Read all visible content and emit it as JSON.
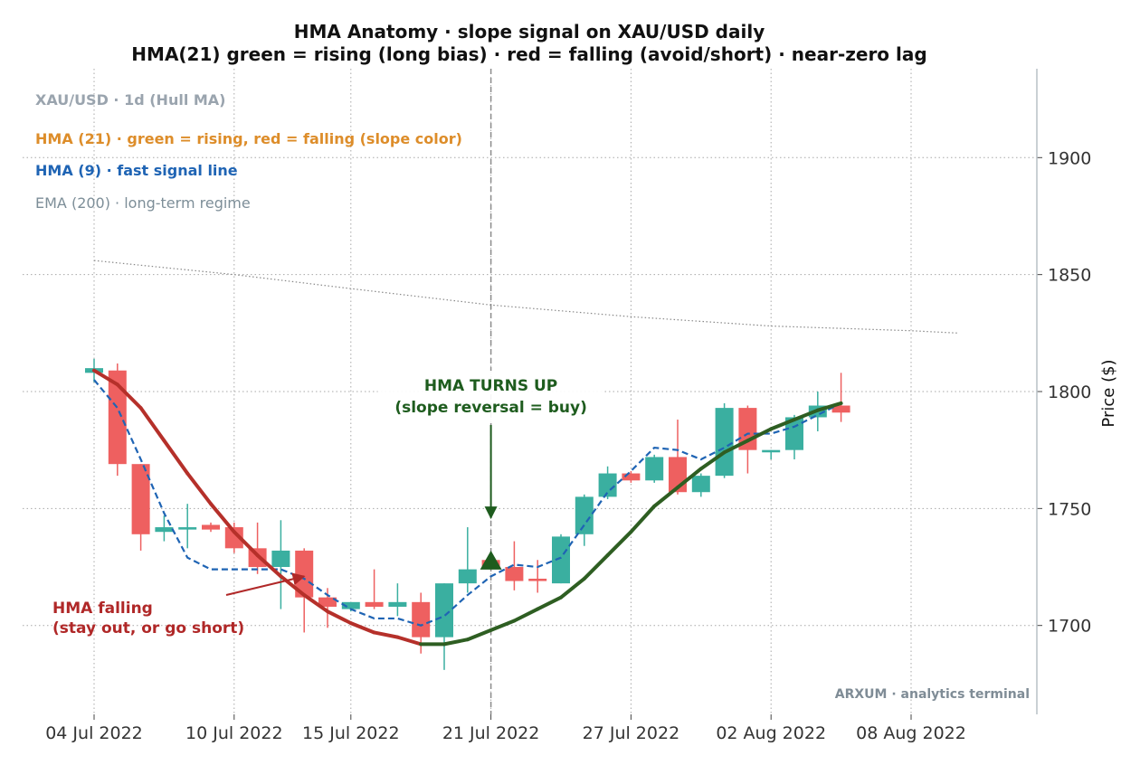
{
  "colors": {
    "bull": "#3aafa0",
    "bear": "#ee6060",
    "hma21_rising": "#2e5e22",
    "hma21_falling": "#b5302a",
    "hma9": "#1f64b4",
    "ema200": "#888888",
    "legend_main": "#9aa4ae",
    "legend_hma21": "#dd8d2a",
    "legend_hma9": "#1f64b4",
    "legend_ema": "#7d8e98",
    "annot_up": "#1e5c1e",
    "annot_down": "#b02828",
    "marker": "#1e5c1e"
  },
  "chart_data": {
    "type": "candlestick",
    "title": "HMA Anatomy · slope signal on XAU/USD daily",
    "subtitle": "HMA(21) green = rising (long bias) · red = falling (avoid/short) · near-zero lag",
    "ylabel": "Price ($)",
    "xlabel": "",
    "ylim": [
      1662,
      1938
    ],
    "y_ticks": [
      1700,
      1750,
      1800,
      1850,
      1900
    ],
    "y_axis_side": "right",
    "grid": true,
    "x_start": "2022-07-04",
    "x_end": "2022-08-13",
    "x_ticks": [
      "2022-07-04",
      "2022-07-10",
      "2022-07-15",
      "2022-07-21",
      "2022-07-27",
      "2022-08-02",
      "2022-08-08"
    ],
    "x_tick_labels": [
      "04 Jul 2022",
      "10 Jul 2022",
      "15 Jul 2022",
      "21 Jul 2022",
      "27 Jul 2022",
      "02 Aug 2022",
      "08 Aug 2022"
    ],
    "legend": {
      "placement": "top-left",
      "entries": [
        "XAU/USD · 1d (Hull MA)",
        "HMA (21) · green = rising, red = falling (slope color)",
        "HMA (9) · fast signal line",
        "EMA (200) · long-term regime"
      ]
    },
    "candles": [
      {
        "date": "2022-07-04",
        "open": 1808,
        "high": 1814,
        "low": 1804,
        "close": 1810
      },
      {
        "date": "2022-07-05",
        "open": 1809,
        "high": 1812,
        "low": 1764,
        "close": 1769
      },
      {
        "date": "2022-07-06",
        "open": 1769,
        "high": 1769,
        "low": 1732,
        "close": 1739
      },
      {
        "date": "2022-07-07",
        "open": 1740,
        "high": 1747,
        "low": 1736,
        "close": 1742
      },
      {
        "date": "2022-07-08",
        "open": 1741,
        "high": 1752,
        "low": 1733,
        "close": 1742
      },
      {
        "date": "2022-07-09",
        "open": 1743,
        "high": 1744,
        "low": 1740,
        "close": 1741
      },
      {
        "date": "2022-07-10",
        "open": 1742,
        "high": 1744,
        "low": 1731,
        "close": 1733
      },
      {
        "date": "2022-07-11",
        "open": 1733,
        "high": 1744,
        "low": 1722,
        "close": 1725
      },
      {
        "date": "2022-07-12",
        "open": 1725,
        "high": 1745,
        "low": 1707,
        "close": 1732
      },
      {
        "date": "2022-07-13",
        "open": 1732,
        "high": 1733,
        "low": 1697,
        "close": 1712
      },
      {
        "date": "2022-07-14",
        "open": 1712,
        "high": 1716,
        "low": 1699,
        "close": 1708
      },
      {
        "date": "2022-07-15",
        "open": 1707,
        "high": 1710,
        "low": 1706,
        "close": 1710
      },
      {
        "date": "2022-07-16",
        "open": 1710,
        "high": 1724,
        "low": 1707,
        "close": 1708
      },
      {
        "date": "2022-07-17",
        "open": 1708,
        "high": 1718,
        "low": 1704,
        "close": 1710
      },
      {
        "date": "2022-07-18",
        "open": 1710,
        "high": 1714,
        "low": 1688,
        "close": 1695
      },
      {
        "date": "2022-07-19",
        "open": 1695,
        "high": 1718,
        "low": 1681,
        "close": 1718
      },
      {
        "date": "2022-07-20",
        "open": 1718,
        "high": 1742,
        "low": 1714,
        "close": 1724
      },
      {
        "date": "2022-07-21",
        "open": 1728,
        "high": 1729,
        "low": 1725,
        "close": 1725
      },
      {
        "date": "2022-07-22",
        "open": 1725,
        "high": 1736,
        "low": 1715,
        "close": 1719
      },
      {
        "date": "2022-07-23",
        "open": 1720,
        "high": 1728,
        "low": 1714,
        "close": 1719
      },
      {
        "date": "2022-07-24",
        "open": 1718,
        "high": 1739,
        "low": 1718,
        "close": 1738
      },
      {
        "date": "2022-07-25",
        "open": 1739,
        "high": 1756,
        "low": 1734,
        "close": 1755
      },
      {
        "date": "2022-07-26",
        "open": 1755,
        "high": 1768,
        "low": 1754,
        "close": 1765
      },
      {
        "date": "2022-07-27",
        "open": 1765,
        "high": 1766,
        "low": 1761,
        "close": 1762
      },
      {
        "date": "2022-07-28",
        "open": 1762,
        "high": 1773,
        "low": 1761,
        "close": 1772
      },
      {
        "date": "2022-07-29",
        "open": 1772,
        "high": 1788,
        "low": 1756,
        "close": 1757
      },
      {
        "date": "2022-07-30",
        "open": 1757,
        "high": 1765,
        "low": 1755,
        "close": 1764
      },
      {
        "date": "2022-07-31",
        "open": 1764,
        "high": 1795,
        "low": 1763,
        "close": 1793
      },
      {
        "date": "2022-08-01",
        "open": 1793,
        "high": 1794,
        "low": 1765,
        "close": 1775
      },
      {
        "date": "2022-08-02",
        "open": 1774,
        "high": 1775,
        "low": 1771,
        "close": 1775
      },
      {
        "date": "2022-08-03",
        "open": 1775,
        "high": 1790,
        "low": 1771,
        "close": 1789
      },
      {
        "date": "2022-08-04",
        "open": 1789,
        "high": 1800,
        "low": 1783,
        "close": 1794
      },
      {
        "date": "2022-08-05",
        "open": 1794,
        "high": 1808,
        "low": 1787,
        "close": 1791
      }
    ],
    "hma21": [
      {
        "date": "2022-07-04",
        "value": 1809
      },
      {
        "date": "2022-07-05",
        "value": 1803
      },
      {
        "date": "2022-07-06",
        "value": 1793
      },
      {
        "date": "2022-07-07",
        "value": 1779
      },
      {
        "date": "2022-07-08",
        "value": 1765
      },
      {
        "date": "2022-07-09",
        "value": 1752
      },
      {
        "date": "2022-07-10",
        "value": 1740
      },
      {
        "date": "2022-07-11",
        "value": 1730
      },
      {
        "date": "2022-07-12",
        "value": 1721
      },
      {
        "date": "2022-07-13",
        "value": 1713
      },
      {
        "date": "2022-07-14",
        "value": 1706
      },
      {
        "date": "2022-07-15",
        "value": 1701
      },
      {
        "date": "2022-07-16",
        "value": 1697
      },
      {
        "date": "2022-07-17",
        "value": 1695
      },
      {
        "date": "2022-07-18",
        "value": 1692
      },
      {
        "date": "2022-07-19",
        "value": 1692
      },
      {
        "date": "2022-07-20",
        "value": 1694
      },
      {
        "date": "2022-07-21",
        "value": 1698
      },
      {
        "date": "2022-07-22",
        "value": 1702
      },
      {
        "date": "2022-07-23",
        "value": 1707
      },
      {
        "date": "2022-07-24",
        "value": 1712
      },
      {
        "date": "2022-07-25",
        "value": 1720
      },
      {
        "date": "2022-07-26",
        "value": 1730
      },
      {
        "date": "2022-07-27",
        "value": 1740
      },
      {
        "date": "2022-07-28",
        "value": 1751
      },
      {
        "date": "2022-07-29",
        "value": 1759
      },
      {
        "date": "2022-07-30",
        "value": 1767
      },
      {
        "date": "2022-07-31",
        "value": 1774
      },
      {
        "date": "2022-08-01",
        "value": 1779
      },
      {
        "date": "2022-08-02",
        "value": 1784
      },
      {
        "date": "2022-08-03",
        "value": 1788
      },
      {
        "date": "2022-08-04",
        "value": 1792
      },
      {
        "date": "2022-08-05",
        "value": 1795
      }
    ],
    "hma9": [
      {
        "date": "2022-07-04",
        "value": 1805
      },
      {
        "date": "2022-07-05",
        "value": 1793
      },
      {
        "date": "2022-07-06",
        "value": 1771
      },
      {
        "date": "2022-07-07",
        "value": 1748
      },
      {
        "date": "2022-07-08",
        "value": 1729
      },
      {
        "date": "2022-07-09",
        "value": 1724
      },
      {
        "date": "2022-07-10",
        "value": 1724
      },
      {
        "date": "2022-07-11",
        "value": 1724
      },
      {
        "date": "2022-07-12",
        "value": 1724
      },
      {
        "date": "2022-07-13",
        "value": 1720
      },
      {
        "date": "2022-07-14",
        "value": 1713
      },
      {
        "date": "2022-07-15",
        "value": 1707
      },
      {
        "date": "2022-07-16",
        "value": 1703
      },
      {
        "date": "2022-07-17",
        "value": 1703
      },
      {
        "date": "2022-07-18",
        "value": 1700
      },
      {
        "date": "2022-07-19",
        "value": 1704
      },
      {
        "date": "2022-07-20",
        "value": 1713
      },
      {
        "date": "2022-07-21",
        "value": 1721
      },
      {
        "date": "2022-07-22",
        "value": 1726
      },
      {
        "date": "2022-07-23",
        "value": 1725
      },
      {
        "date": "2022-07-24",
        "value": 1729
      },
      {
        "date": "2022-07-25",
        "value": 1743
      },
      {
        "date": "2022-07-26",
        "value": 1757
      },
      {
        "date": "2022-07-27",
        "value": 1766
      },
      {
        "date": "2022-07-28",
        "value": 1776
      },
      {
        "date": "2022-07-29",
        "value": 1775
      },
      {
        "date": "2022-07-30",
        "value": 1771
      },
      {
        "date": "2022-07-31",
        "value": 1776
      },
      {
        "date": "2022-08-01",
        "value": 1782
      },
      {
        "date": "2022-08-02",
        "value": 1782
      },
      {
        "date": "2022-08-03",
        "value": 1785
      },
      {
        "date": "2022-08-04",
        "value": 1790
      },
      {
        "date": "2022-08-05",
        "value": 1795
      }
    ],
    "ema200": [
      {
        "date": "2022-07-04",
        "value": 1856
      },
      {
        "date": "2022-07-10",
        "value": 1850
      },
      {
        "date": "2022-07-15",
        "value": 1844
      },
      {
        "date": "2022-07-21",
        "value": 1837
      },
      {
        "date": "2022-07-27",
        "value": 1832
      },
      {
        "date": "2022-08-02",
        "value": 1828
      },
      {
        "date": "2022-08-08",
        "value": 1826
      },
      {
        "date": "2022-08-10",
        "value": 1825
      }
    ],
    "signal_date": "2022-07-21",
    "signal_marker": {
      "date": "2022-07-21",
      "value": 1727,
      "shape": "triangle-up"
    },
    "annotations": [
      {
        "id": "up",
        "lines": [
          "HMA TURNS UP",
          "(slope reversal = buy)"
        ],
        "arrow_to": {
          "date": "2022-07-21",
          "value": 1746
        }
      },
      {
        "id": "down",
        "lines": [
          "HMA falling",
          "(stay out, or go short)"
        ],
        "arrow_to": {
          "date": "2022-07-13",
          "value": 1721
        }
      }
    ],
    "watermark": "ARXUM · analytics terminal"
  }
}
